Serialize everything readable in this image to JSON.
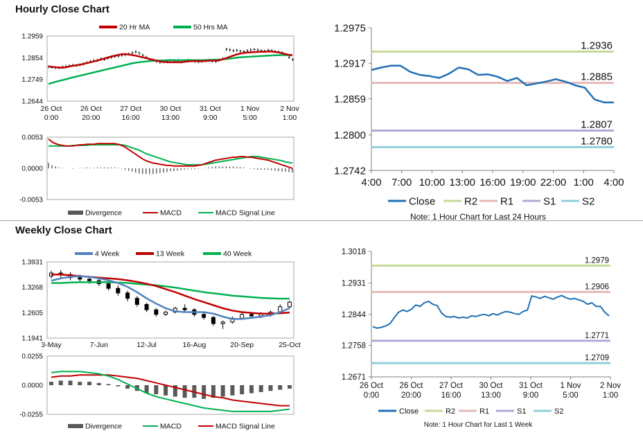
{
  "hourly": {
    "title": "Hourly Close Chart",
    "price": {
      "legend": [
        "20 Hr MA",
        "50 Hrs MA"
      ],
      "colors": {
        "ma20": "#c00000",
        "ma50": "#00b050",
        "price": "#000000"
      },
      "ylim": [
        1.2644,
        1.2959
      ],
      "yticks": [
        "1.2959",
        "1.2854",
        "1.2749",
        "1.2644"
      ],
      "xticks": [
        [
          "26 Oct",
          "0:00"
        ],
        [
          "26 Oct",
          "20:00"
        ],
        [
          "27 Oct",
          "16:00"
        ],
        [
          "30 Oct",
          "13:00"
        ],
        [
          "31 Oct",
          "9:00"
        ],
        [
          "1 Nov",
          "5:00"
        ],
        [
          "2 Nov",
          "1:00"
        ]
      ],
      "close": [
        1.281,
        1.2808,
        1.2806,
        1.2805,
        1.2809,
        1.2812,
        1.2815,
        1.2818,
        1.2816,
        1.282,
        1.2824,
        1.283,
        1.2836,
        1.284,
        1.2842,
        1.2848,
        1.2846,
        1.2852,
        1.2856,
        1.286,
        1.2862,
        1.2866,
        1.2868,
        1.2872,
        1.2878,
        1.2882,
        1.2876,
        1.2866,
        1.2856,
        1.2846,
        1.2842,
        1.2836,
        1.2832,
        1.2834,
        1.2838,
        1.284,
        1.2838,
        1.2836,
        1.2834,
        1.2838,
        1.2842,
        1.284,
        1.2836,
        1.2834,
        1.2836,
        1.284,
        1.2842,
        1.2838,
        1.2836,
        1.2842,
        1.285,
        1.2895,
        1.2892,
        1.2888,
        1.289,
        1.2886,
        1.2884,
        1.2888,
        1.2892,
        1.2894,
        1.2892,
        1.2888,
        1.2886,
        1.289,
        1.2888,
        1.2884,
        1.2882,
        1.2878,
        1.2868,
        1.2856,
        1.2845
      ],
      "ma20": [
        1.2812,
        1.281,
        1.2808,
        1.2807,
        1.2806,
        1.2808,
        1.2812,
        1.2815,
        1.2818,
        1.282,
        1.2824,
        1.2828,
        1.2832,
        1.2836,
        1.284,
        1.2845,
        1.285,
        1.2855,
        1.286,
        1.2864,
        1.2868,
        1.2871,
        1.2872,
        1.287,
        1.2867,
        1.2864,
        1.286,
        1.2856,
        1.2852,
        1.2848,
        1.2844,
        1.284,
        1.2836,
        1.2834,
        1.2832,
        1.2832,
        1.2832,
        1.2832,
        1.2832,
        1.2834,
        1.2836,
        1.2838,
        1.2838,
        1.2838,
        1.2838,
        1.2838,
        1.2839,
        1.284,
        1.284,
        1.2842,
        1.2846,
        1.2852,
        1.2858,
        1.2864,
        1.287,
        1.2874,
        1.2877,
        1.2879,
        1.288,
        1.2881,
        1.2882,
        1.2883,
        1.2883,
        1.2884,
        1.2884,
        1.2882,
        1.288,
        1.2876,
        1.2872,
        1.2868,
        1.2866
      ],
      "ma50": [
        1.2727,
        1.2732,
        1.2737,
        1.2742,
        1.2746,
        1.275,
        1.2755,
        1.2759,
        1.2763,
        1.2767,
        1.2771,
        1.2775,
        1.2779,
        1.2783,
        1.2787,
        1.2791,
        1.2795,
        1.2799,
        1.2803,
        1.2807,
        1.2811,
        1.2815,
        1.2819,
        1.2823,
        1.2827,
        1.283,
        1.2832,
        1.2834,
        1.2836,
        1.2838,
        1.2839,
        1.284,
        1.2841,
        1.2841,
        1.2842,
        1.2842,
        1.2842,
        1.2842,
        1.2842,
        1.2842,
        1.2842,
        1.2842,
        1.2842,
        1.2842,
        1.2842,
        1.2843,
        1.2843,
        1.2844,
        1.2844,
        1.2845,
        1.2846,
        1.2848,
        1.285,
        1.2852,
        1.2854,
        1.2856,
        1.2857,
        1.2858,
        1.2859,
        1.286,
        1.2861,
        1.2862,
        1.2863,
        1.2864,
        1.2865,
        1.2866,
        1.2866,
        1.2867,
        1.2867,
        1.2867,
        1.2868
      ]
    },
    "macd": {
      "legend": [
        "Divergence",
        "MACD",
        "MACD Signal Line"
      ],
      "colors": {
        "divergence": "#595959",
        "macd": "#c00000",
        "signal": "#00b050"
      },
      "ylim": [
        -0.0053,
        0.0053
      ],
      "yticks": [
        "0.0053",
        "0.0000",
        "-0.0053"
      ],
      "macd": [
        0.005,
        0.0045,
        0.0042,
        0.004,
        0.0039,
        0.0038,
        0.0038,
        0.0038,
        0.0039,
        0.004,
        0.004,
        0.0041,
        0.0041,
        0.0041,
        0.0042,
        0.0042,
        0.0042,
        0.0042,
        0.0042,
        0.0042,
        0.0041,
        0.0039,
        0.0036,
        0.0032,
        0.0028,
        0.0024,
        0.002,
        0.0016,
        0.0013,
        0.0011,
        0.0009,
        0.0008,
        0.0007,
        0.0006,
        0.0005,
        0.0005,
        0.0004,
        0.0004,
        0.0004,
        0.0004,
        0.0004,
        0.0004,
        0.0004,
        0.0005,
        0.0006,
        0.0008,
        0.001,
        0.0012,
        0.0014,
        0.0015,
        0.0016,
        0.0017,
        0.0018,
        0.0019,
        0.0019,
        0.002,
        0.002,
        0.0019,
        0.0019,
        0.0018,
        0.0017,
        0.0016,
        0.0015,
        0.0014,
        0.0012,
        0.001,
        0.0008,
        0.0006,
        0.0004,
        0.0002,
        0.0
      ],
      "signal": [
        0.0038,
        0.0038,
        0.0038,
        0.0038,
        0.0038,
        0.0038,
        0.0038,
        0.0039,
        0.0039,
        0.0039,
        0.0039,
        0.0039,
        0.004,
        0.004,
        0.004,
        0.004,
        0.004,
        0.004,
        0.004,
        0.004,
        0.004,
        0.004,
        0.0039,
        0.0037,
        0.0035,
        0.0033,
        0.0031,
        0.0028,
        0.0025,
        0.0023,
        0.0021,
        0.0019,
        0.0017,
        0.0015,
        0.0013,
        0.0011,
        0.001,
        0.0009,
        0.0008,
        0.0007,
        0.0006,
        0.0006,
        0.0006,
        0.0006,
        0.0006,
        0.0007,
        0.0008,
        0.0009,
        0.001,
        0.0011,
        0.0012,
        0.0013,
        0.0014,
        0.0015,
        0.0016,
        0.0017,
        0.0018,
        0.0019,
        0.002,
        0.002,
        0.002,
        0.0019,
        0.0018,
        0.0017,
        0.0016,
        0.0015,
        0.0014,
        0.0013,
        0.0011,
        0.001,
        0.0009
      ]
    },
    "pivot": {
      "ylim": [
        1.2742,
        1.2975
      ],
      "yticks": [
        "1.2975",
        "1.2917",
        "1.2859",
        "1.2800",
        "1.2742"
      ],
      "xticks": [
        "4:00",
        "7:00",
        "10:00",
        "13:00",
        "16:00",
        "19:00",
        "22:00",
        "1:00",
        "4:00"
      ],
      "close": [
        1.2906,
        1.291,
        1.2913,
        1.2913,
        1.2903,
        1.2898,
        1.2896,
        1.2893,
        1.29,
        1.291,
        1.2907,
        1.2898,
        1.2899,
        1.2895,
        1.2888,
        1.2893,
        1.2881,
        1.2884,
        1.2887,
        1.2891,
        1.2887,
        1.2881,
        1.2877,
        1.2858,
        1.2853,
        1.2853
      ],
      "levels": [
        {
          "name": "R2",
          "value": 1.2936,
          "label": "1.2936",
          "color": "#c6d99a"
        },
        {
          "name": "R1",
          "value": 1.2885,
          "label": "1.2885",
          "color": "#e6b8b7"
        },
        {
          "name": "S1",
          "value": 1.2807,
          "label": "1.2807",
          "color": "#b4a7d6"
        },
        {
          "name": "S2",
          "value": 1.278,
          "label": "1.2780",
          "color": "#92cddc"
        }
      ],
      "close_color": "#1f6fb5",
      "legend": [
        "Close",
        "R2",
        "R1",
        "S1",
        "S2"
      ],
      "note": "Note: 1 Hour Chart for Last 24 Hours"
    }
  },
  "weekly": {
    "title": "Weekly Close Chart",
    "price": {
      "legend": [
        "4 Week",
        "13 Week",
        "40 Week"
      ],
      "colors": {
        "w4": "#4f81bd",
        "w13": "#c00000",
        "w40": "#00b050"
      },
      "ylim": [
        1.1941,
        1.3931
      ],
      "yticks": [
        "1.3931",
        "1.3268",
        "1.2605",
        "1.1941"
      ],
      "xticks": [
        "3-May",
        "7-Jun",
        "12-Jul",
        "16-Aug",
        "20-Sep",
        "25-Oct"
      ],
      "candles": [
        [
          1.356,
          1.37,
          1.35,
          1.364
        ],
        [
          1.364,
          1.372,
          1.352,
          1.36
        ],
        [
          1.36,
          1.366,
          1.345,
          1.352
        ],
        [
          1.352,
          1.36,
          1.34,
          1.348
        ],
        [
          1.348,
          1.356,
          1.336,
          1.344
        ],
        [
          1.344,
          1.352,
          1.33,
          1.336
        ],
        [
          1.336,
          1.342,
          1.318,
          1.324
        ],
        [
          1.324,
          1.332,
          1.305,
          1.312
        ],
        [
          1.312,
          1.318,
          1.29,
          1.298
        ],
        [
          1.298,
          1.304,
          1.276,
          1.282
        ],
        [
          1.282,
          1.286,
          1.262,
          1.268
        ],
        [
          1.268,
          1.272,
          1.25,
          1.256
        ],
        [
          1.256,
          1.266,
          1.252,
          1.262
        ],
        [
          1.262,
          1.276,
          1.258,
          1.272
        ],
        [
          1.272,
          1.282,
          1.262,
          1.268
        ],
        [
          1.268,
          1.272,
          1.25,
          1.256
        ],
        [
          1.256,
          1.262,
          1.242,
          1.248
        ],
        [
          1.248,
          1.252,
          1.226,
          1.232
        ],
        [
          1.232,
          1.24,
          1.218,
          1.236
        ],
        [
          1.236,
          1.25,
          1.232,
          1.246
        ],
        [
          1.246,
          1.262,
          1.242,
          1.256
        ],
        [
          1.256,
          1.26,
          1.248,
          1.252
        ],
        [
          1.252,
          1.262,
          1.246,
          1.258
        ],
        [
          1.258,
          1.266,
          1.25,
          1.262
        ],
        [
          1.262,
          1.282,
          1.258,
          1.276
        ],
        [
          1.276,
          1.292,
          1.272,
          1.288
        ]
      ],
      "w4": [
        1.344,
        1.35,
        1.354,
        1.356,
        1.354,
        1.35,
        1.345,
        1.338,
        1.328,
        1.314,
        1.298,
        1.284,
        1.272,
        1.264,
        1.262,
        1.262,
        1.262,
        1.258,
        1.25,
        1.244,
        1.244,
        1.247,
        1.25,
        1.254,
        1.262,
        1.272
      ],
      "w13": [
        1.36,
        1.36,
        1.358,
        1.356,
        1.354,
        1.352,
        1.35,
        1.348,
        1.345,
        1.341,
        1.336,
        1.33,
        1.322,
        1.314,
        1.305,
        1.296,
        1.288,
        1.28,
        1.272,
        1.266,
        1.262,
        1.26,
        1.258,
        1.258,
        1.259,
        1.261
      ],
      "w40": [
        1.338,
        1.338,
        1.339,
        1.34,
        1.34,
        1.34,
        1.34,
        1.339,
        1.338,
        1.336,
        1.334,
        1.332,
        1.329,
        1.326,
        1.322,
        1.318,
        1.314,
        1.311,
        1.308,
        1.305,
        1.303,
        1.301,
        1.299,
        1.298,
        1.297,
        1.297
      ]
    },
    "macd": {
      "legend": [
        "Divergence",
        "MACD",
        "MACD Signal Line"
      ],
      "colors": {
        "divergence": "#595959",
        "macd": "#00b050",
        "signal": "#c00000"
      },
      "ylim": [
        -0.0255,
        0.0255
      ],
      "yticks": [
        "0.0255",
        "0.0000",
        "-0.0255"
      ],
      "divergence": [
        0.003,
        0.004,
        0.004,
        0.003,
        0.003,
        0.002,
        0.001,
        -0.001,
        -0.003,
        -0.005,
        -0.007,
        -0.008,
        -0.009,
        -0.01,
        -0.011,
        -0.011,
        -0.012,
        -0.011,
        -0.01,
        -0.009,
        -0.008,
        -0.007,
        -0.006,
        -0.005,
        -0.004,
        -0.003
      ],
      "macd": [
        0.011,
        0.012,
        0.012,
        0.012,
        0.011,
        0.01,
        0.008,
        0.005,
        0.001,
        -0.003,
        -0.007,
        -0.01,
        -0.012,
        -0.014,
        -0.016,
        -0.018,
        -0.02,
        -0.021,
        -0.022,
        -0.023,
        -0.023,
        -0.023,
        -0.023,
        -0.023,
        -0.022,
        -0.021
      ],
      "signal": [
        0.007,
        0.008,
        0.008,
        0.009,
        0.009,
        0.009,
        0.009,
        0.008,
        0.007,
        0.006,
        0.004,
        0.002,
        0.0,
        -0.002,
        -0.004,
        -0.006,
        -0.008,
        -0.01,
        -0.011,
        -0.013,
        -0.014,
        -0.015,
        -0.016,
        -0.017,
        -0.018,
        -0.018
      ]
    },
    "pivot": {
      "ylim": [
        1.2671,
        1.3018
      ],
      "yticks": [
        "1.3018",
        "1.2931",
        "1.2844",
        "1.2758",
        "1.2671"
      ],
      "xticks": [
        [
          "26 Oct",
          "0:00"
        ],
        [
          "26 Oct",
          "20:00"
        ],
        [
          "27 Oct",
          "16:00"
        ],
        [
          "30 Oct",
          "13:00"
        ],
        [
          "31 Oct",
          "9:00"
        ],
        [
          "1 Nov",
          "5:00"
        ],
        [
          "2 Nov",
          "1:00"
        ]
      ],
      "close": [
        1.281,
        1.2806,
        1.2808,
        1.2812,
        1.2818,
        1.2835,
        1.285,
        1.2856,
        1.2852,
        1.2858,
        1.287,
        1.2866,
        1.2876,
        1.288,
        1.2872,
        1.2868,
        1.2848,
        1.2838,
        1.2836,
        1.2838,
        1.2834,
        1.2836,
        1.2834,
        1.284,
        1.2838,
        1.2842,
        1.2844,
        1.284,
        1.2846,
        1.2842,
        1.2848,
        1.2852,
        1.285,
        1.2846,
        1.2844,
        1.2852,
        1.2856,
        1.2895,
        1.2892,
        1.2888,
        1.2894,
        1.289,
        1.2886,
        1.2892,
        1.2896,
        1.289,
        1.2886,
        1.2888,
        1.2884,
        1.288,
        1.2872,
        1.2876,
        1.2866,
        1.2866,
        1.285,
        1.284
      ],
      "levels": [
        {
          "name": "R2",
          "value": 1.2979,
          "label": "1.2979",
          "color": "#c6d99a"
        },
        {
          "name": "R1",
          "value": 1.2906,
          "label": "1.2906",
          "color": "#e6b8b7"
        },
        {
          "name": "S1",
          "value": 1.2771,
          "label": "1.2771",
          "color": "#b4a7d6"
        },
        {
          "name": "S2",
          "value": 1.2709,
          "label": "1.2709",
          "color": "#92cddc"
        }
      ],
      "close_color": "#1f6fb5",
      "legend": [
        "Close",
        "R2",
        "R1",
        "S1",
        "S2"
      ],
      "note": "Note: 1 Hour Chart for  Last 1 Week"
    }
  }
}
